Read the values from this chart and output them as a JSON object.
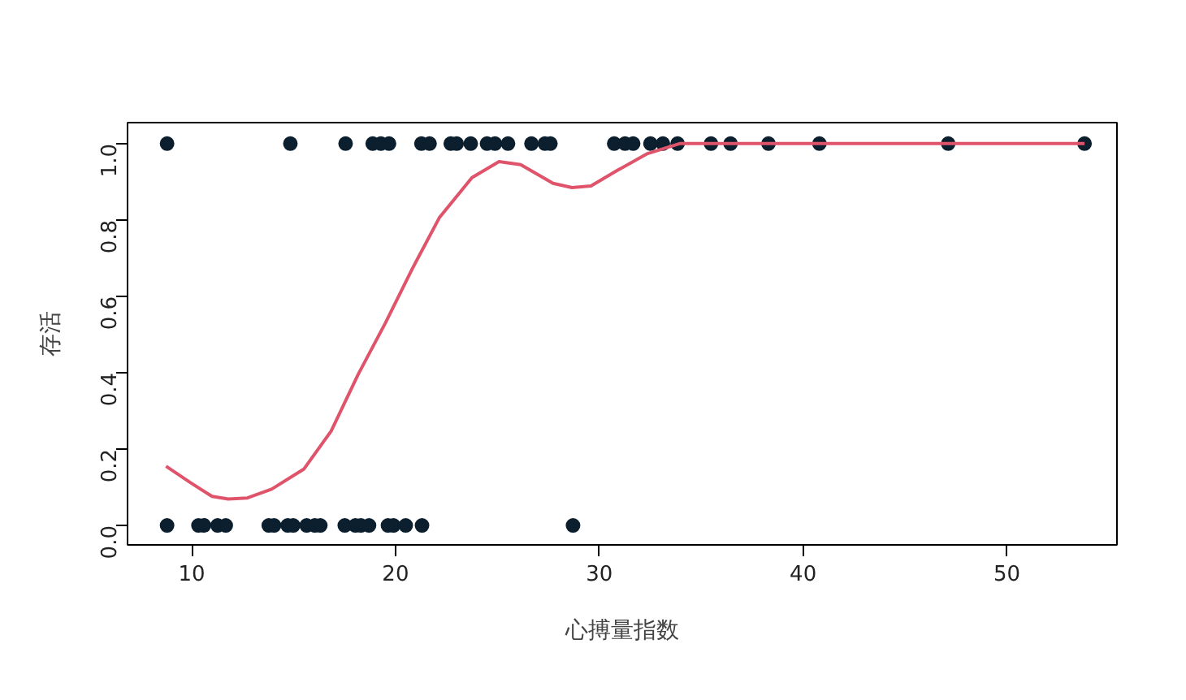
{
  "chart_data": {
    "type": "scatter",
    "xlabel": "心搏量指数",
    "ylabel": "存活",
    "xlim": [
      6.85,
      55.4
    ],
    "ylim": [
      -0.051,
      1.055
    ],
    "xticks": [
      10,
      20,
      30,
      40,
      50
    ],
    "yticks": [
      {
        "value": 0,
        "label": "0.0"
      },
      {
        "value": 0.2,
        "label": "0.2"
      },
      {
        "value": 0.4,
        "label": "0.4"
      },
      {
        "value": 0.6,
        "label": "0.6"
      },
      {
        "value": 0.8,
        "label": "0.8"
      },
      {
        "value": 1,
        "label": "1.0"
      }
    ],
    "grid": false,
    "marker": "circle",
    "series": [
      {
        "color": "#0b1f2e",
        "x": [
          8.79,
          14.84,
          17.55,
          18.88,
          19.28,
          19.68,
          21.27,
          21.67,
          22.71,
          23.0,
          23.69,
          24.49,
          24.88,
          25.52,
          26.67,
          27.33,
          27.6,
          30.73,
          31.26,
          31.66,
          32.51,
          33.12,
          33.84,
          35.48,
          36.44,
          38.3,
          40.8,
          47.12,
          53.81,
          8.79,
          10.33,
          10.6,
          11.27,
          11.67,
          13.78,
          14.04,
          14.71,
          14.98,
          15.64,
          16.04,
          16.31,
          17.51,
          18.03,
          18.3,
          18.7,
          19.63,
          19.9,
          20.5,
          21.3,
          28.71
        ],
        "values": [
          1,
          1,
          1,
          1,
          1,
          1,
          1,
          1,
          1,
          1,
          1,
          1,
          1,
          1,
          1,
          1,
          1,
          1,
          1,
          1,
          1,
          1,
          1,
          1,
          1,
          1,
          1,
          1,
          1,
          0,
          0,
          0,
          0,
          0,
          0,
          0,
          0,
          0,
          0,
          0,
          0,
          0,
          0,
          0,
          0,
          0,
          0,
          0,
          0,
          0
        ]
      },
      {
        "type": "line",
        "color": "#df536b",
        "line_style": "solid",
        "marker": "none",
        "x": [
          8.74,
          9.94,
          11.0,
          11.79,
          12.73,
          13.92,
          15.51,
          16.84,
          18.17,
          19.5,
          20.82,
          22.15,
          23.75,
          25.08,
          26.14,
          27.73,
          28.66,
          29.59,
          30.92,
          32.37,
          33.94,
          53.81
        ],
        "values": [
          0.155,
          0.112,
          0.076,
          0.069,
          0.072,
          0.095,
          0.148,
          0.247,
          0.396,
          0.53,
          0.672,
          0.806,
          0.911,
          0.953,
          0.945,
          0.896,
          0.885,
          0.889,
          0.931,
          0.974,
          1.0,
          1.0
        ]
      }
    ]
  }
}
